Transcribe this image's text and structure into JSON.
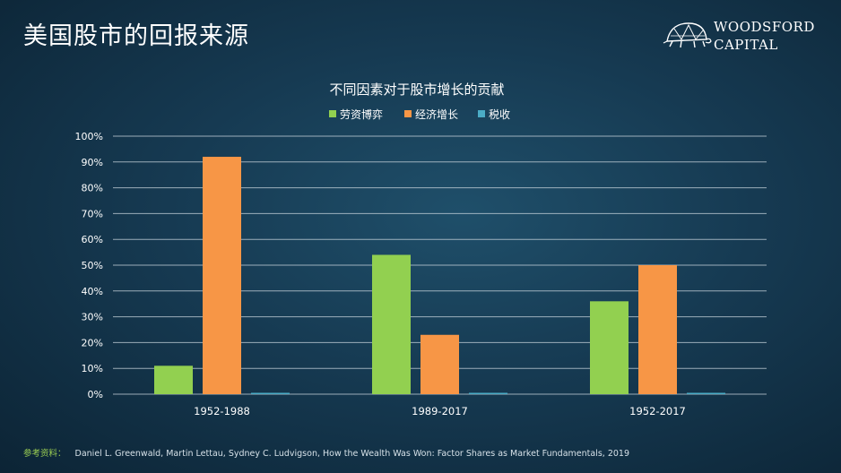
{
  "slide": {
    "title": "美国股市的回报来源"
  },
  "logo": {
    "line1": "WOODSFORD",
    "line2": "CAPITAL",
    "icon": "turtle-logo-icon"
  },
  "chart_data": {
    "type": "bar",
    "title": "不同因素对于股市增长的贡献",
    "categories": [
      "1952-1988",
      "1989-2017",
      "1952-2017"
    ],
    "series": [
      {
        "name": "劳资博弈",
        "color": "#92d050",
        "values": [
          11,
          54,
          36
        ]
      },
      {
        "name": "经济增长",
        "color": "#f79646",
        "values": [
          92,
          23,
          50
        ]
      },
      {
        "name": "税收",
        "color": "#4bacc6",
        "values": [
          0.5,
          0.5,
          0.5
        ]
      }
    ],
    "ylim": [
      0,
      100
    ],
    "yticks": [
      "0%",
      "10%",
      "20%",
      "30%",
      "40%",
      "50%",
      "60%",
      "70%",
      "80%",
      "90%",
      "100%"
    ],
    "grid": true,
    "legend": "top"
  },
  "footer": {
    "label": "参考资料：",
    "citation": "Daniel L. Greenwald, Martin Lettau, Sydney C. Ludvigson, How the Wealth Was Won: Factor Shares as Market Fundamentals, 2019"
  }
}
